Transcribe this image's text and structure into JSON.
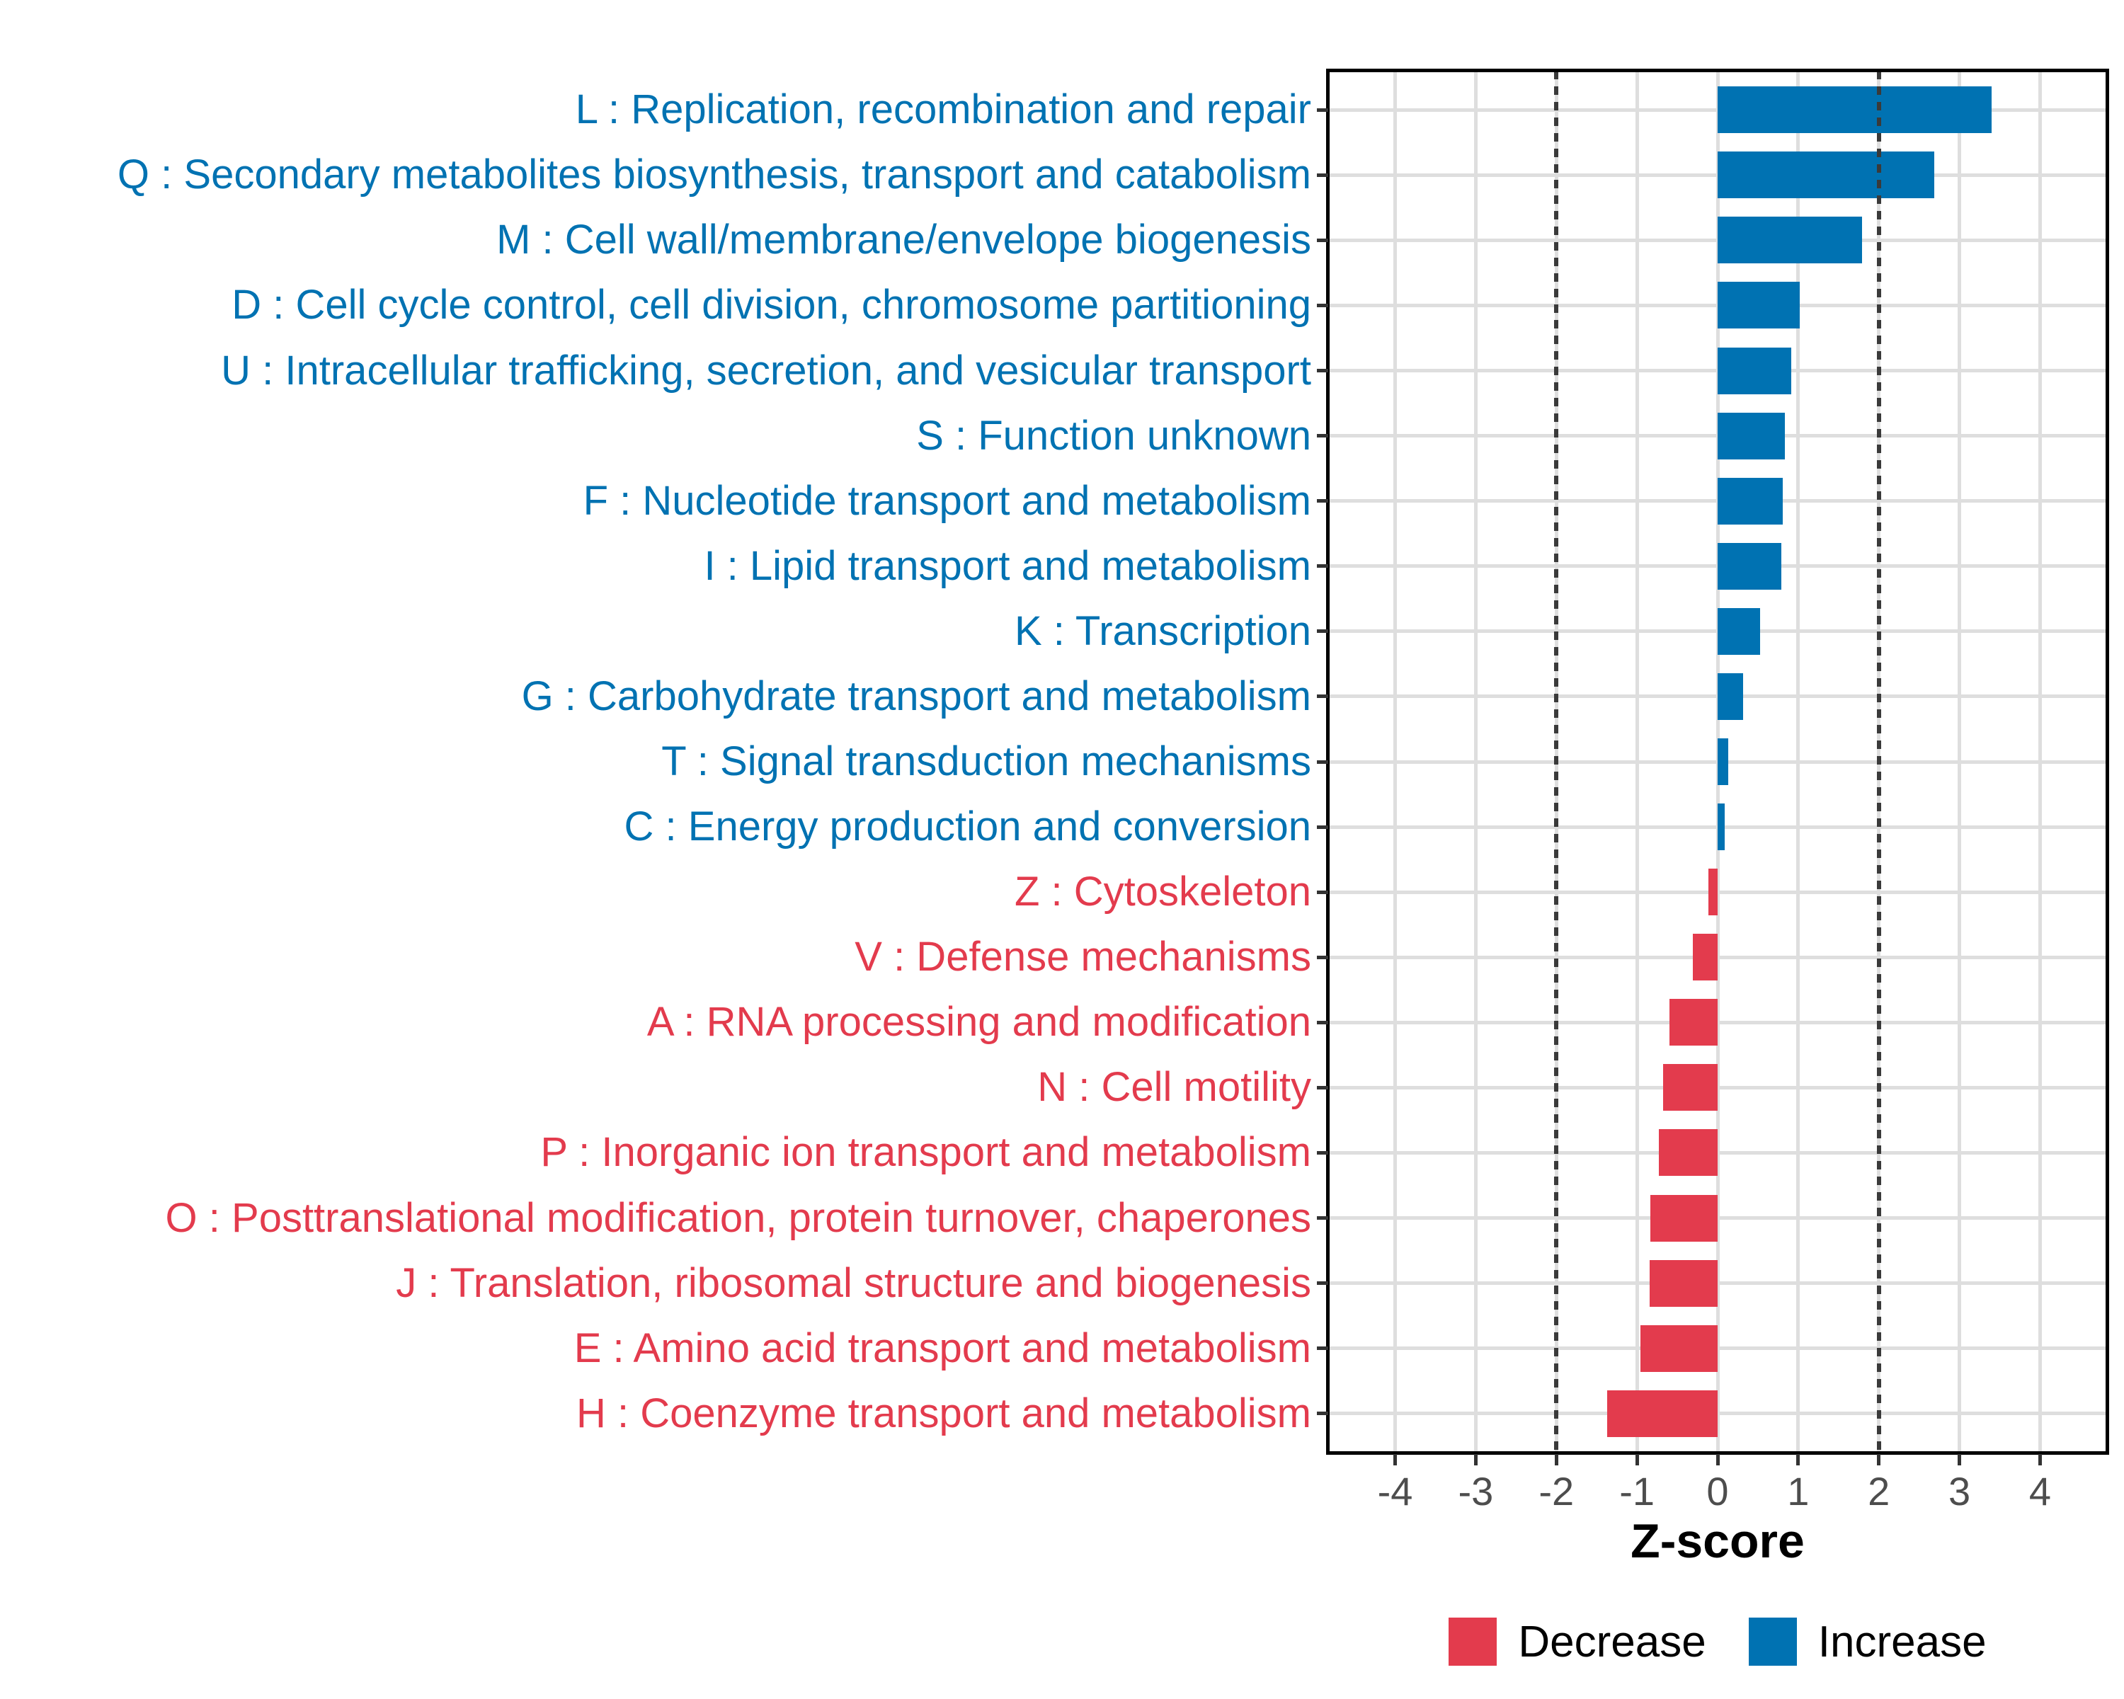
{
  "chart_data": {
    "type": "bar",
    "orientation": "horizontal",
    "title": "",
    "xlabel": "Z-score",
    "ylabel": "",
    "xlim": [
      -4.83,
      4.83
    ],
    "x_ticks": [
      -4,
      -3,
      -2,
      -1,
      0,
      1,
      2,
      3,
      4
    ],
    "reference_lines": [
      -2,
      2
    ],
    "grid": "major-only",
    "legend_position": "bottom-center",
    "legend": [
      {
        "label": "Decrease",
        "color": "#E33B4D"
      },
      {
        "label": "Increase",
        "color": "#0072B2"
      }
    ],
    "colors": {
      "increase": "#0072B2",
      "decrease": "#E33B4D",
      "grid": "#DEDEDE",
      "panel_border": "#000000",
      "tick": "#333333",
      "tick_label": "#4D4D4D",
      "axis_title": "#000000",
      "reference_line": "#3A3A3A",
      "background": "#FFFFFF"
    },
    "rows": [
      {
        "code": "L",
        "label": "L : Replication, recombination and repair",
        "group": "Increase",
        "value": 3.4
      },
      {
        "code": "Q",
        "label": "Q : Secondary metabolites biosynthesis, transport and catabolism",
        "group": "Increase",
        "value": 2.69
      },
      {
        "code": "M",
        "label": "M : Cell wall/membrane/envelope biogenesis",
        "group": "Increase",
        "value": 1.79
      },
      {
        "code": "D",
        "label": "D : Cell cycle control, cell division, chromosome partitioning",
        "group": "Increase",
        "value": 1.02
      },
      {
        "code": "U",
        "label": "U : Intracellular trafficking, secretion, and vesicular transport",
        "group": "Increase",
        "value": 0.91
      },
      {
        "code": "S",
        "label": "S : Function unknown",
        "group": "Increase",
        "value": 0.83
      },
      {
        "code": "F",
        "label": "F : Nucleotide transport and metabolism",
        "group": "Increase",
        "value": 0.81
      },
      {
        "code": "I",
        "label": "I : Lipid transport and metabolism",
        "group": "Increase",
        "value": 0.79
      },
      {
        "code": "K",
        "label": "K : Transcription",
        "group": "Increase",
        "value": 0.53
      },
      {
        "code": "G",
        "label": "G : Carbohydrate transport and metabolism",
        "group": "Increase",
        "value": 0.32
      },
      {
        "code": "T",
        "label": "T : Signal transduction mechanisms",
        "group": "Increase",
        "value": 0.13
      },
      {
        "code": "C",
        "label": "C : Energy production and conversion",
        "group": "Increase",
        "value": 0.09
      },
      {
        "code": "Z",
        "label": "Z : Cytoskeleton",
        "group": "Decrease",
        "value": -0.11
      },
      {
        "code": "V",
        "label": "V : Defense mechanisms",
        "group": "Decrease",
        "value": -0.31
      },
      {
        "code": "A",
        "label": "A : RNA processing and modification",
        "group": "Decrease",
        "value": -0.6
      },
      {
        "code": "N",
        "label": "N : Cell motility",
        "group": "Decrease",
        "value": -0.68
      },
      {
        "code": "P",
        "label": "P : Inorganic ion transport and metabolism",
        "group": "Decrease",
        "value": -0.73
      },
      {
        "code": "O",
        "label": "O : Posttranslational modification, protein turnover, chaperones",
        "group": "Decrease",
        "value": -0.83
      },
      {
        "code": "J",
        "label": "J : Translation, ribosomal structure and biogenesis",
        "group": "Decrease",
        "value": -0.84
      },
      {
        "code": "E",
        "label": "E : Amino acid transport and metabolism",
        "group": "Decrease",
        "value": -0.96
      },
      {
        "code": "H",
        "label": "H : Coenzyme transport and metabolism",
        "group": "Decrease",
        "value": -1.37
      }
    ]
  }
}
